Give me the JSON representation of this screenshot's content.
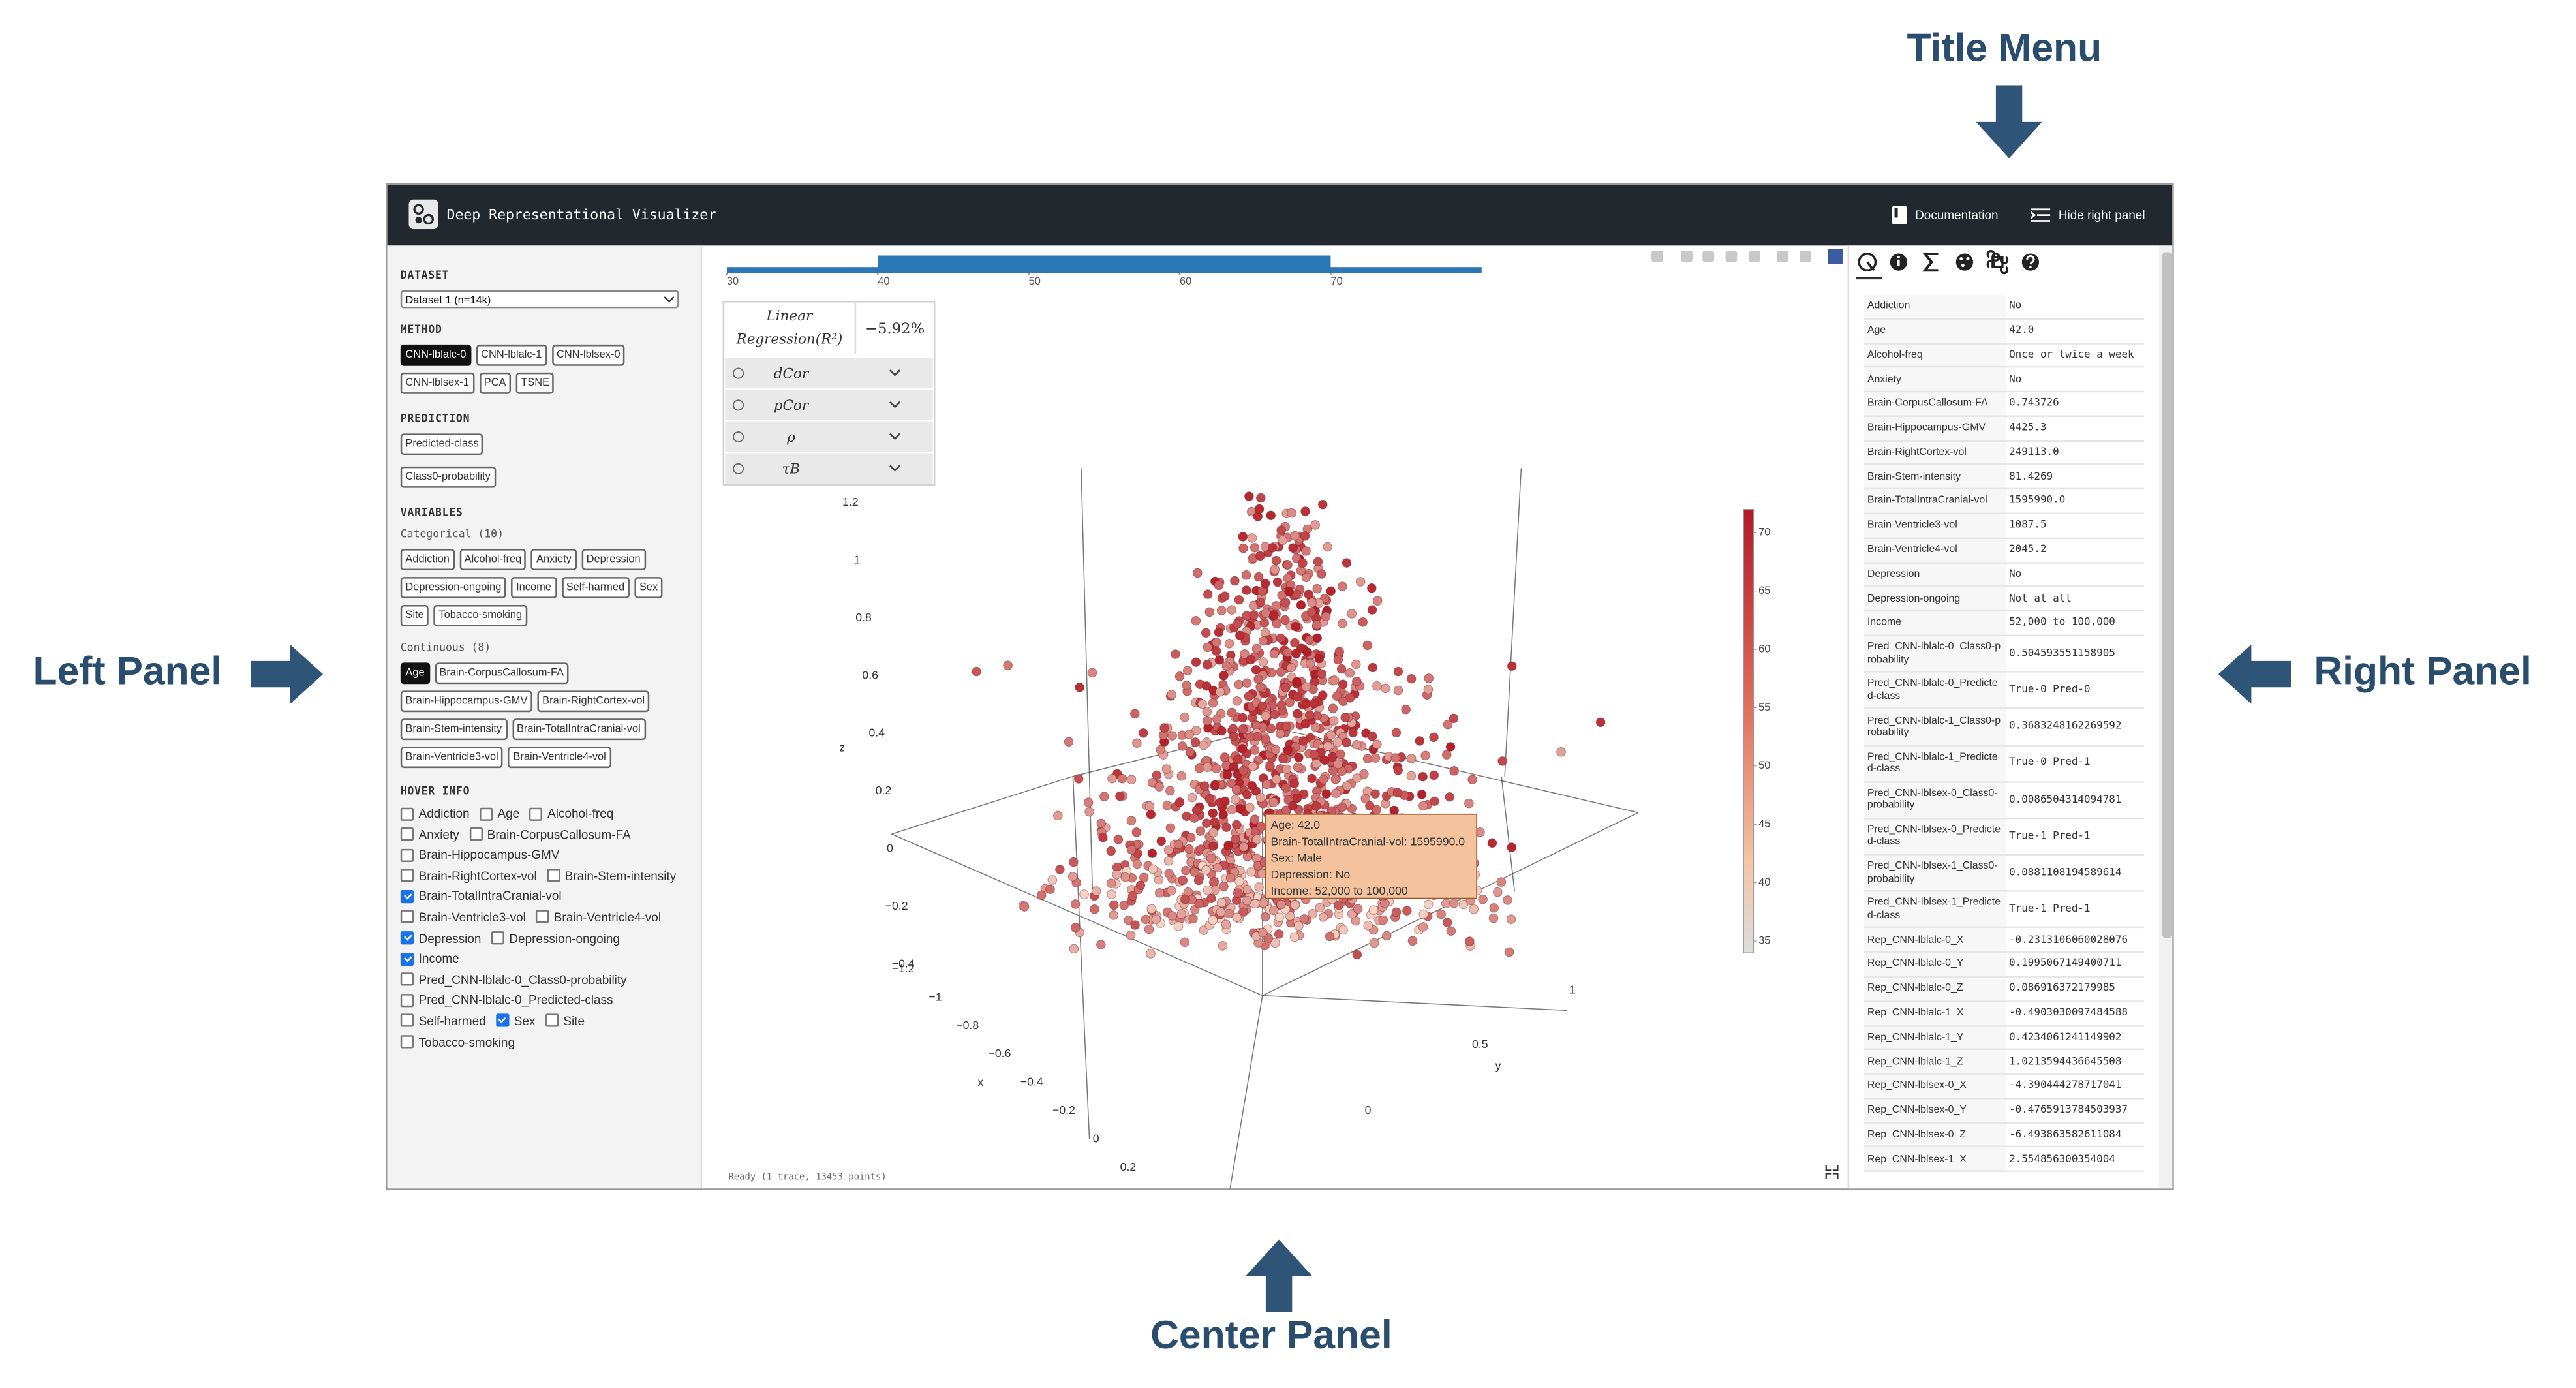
{
  "annotations": {
    "title_menu": "Title Menu",
    "left_panel": "Left Panel",
    "right_panel": "Right Panel",
    "center_panel": "Center Panel"
  },
  "header": {
    "title": "Deep Representational Visualizer",
    "documentation": "Documentation",
    "hide_right_panel": "Hide right panel"
  },
  "left_panel": {
    "dataset": {
      "label": "DATASET",
      "selected": "Dataset 1 (n=14k)"
    },
    "method": {
      "label": "METHOD",
      "options": [
        {
          "label": "CNN-lblalc-0",
          "active": true
        },
        {
          "label": "CNN-lblalc-1",
          "active": false
        },
        {
          "label": "CNN-lblsex-0",
          "active": false
        },
        {
          "label": "CNN-lblsex-1",
          "active": false
        },
        {
          "label": "PCA",
          "active": false
        },
        {
          "label": "TSNE",
          "active": false
        }
      ]
    },
    "prediction": {
      "label": "PREDICTION",
      "options": [
        {
          "label": "Predicted-class",
          "active": false
        },
        {
          "label": "Class0-probability",
          "active": false
        }
      ]
    },
    "variables": {
      "label": "VARIABLES",
      "categorical_label": "Categorical (10)",
      "categorical": [
        {
          "label": "Addiction",
          "active": false
        },
        {
          "label": "Alcohol-freq",
          "active": false
        },
        {
          "label": "Anxiety",
          "active": false
        },
        {
          "label": "Depression",
          "active": false
        },
        {
          "label": "Depression-ongoing",
          "active": false
        },
        {
          "label": "Income",
          "active": false
        },
        {
          "label": "Self-harmed",
          "active": false
        },
        {
          "label": "Sex",
          "active": false
        },
        {
          "label": "Site",
          "active": false
        },
        {
          "label": "Tobacco-smoking",
          "active": false
        }
      ],
      "continuous_label": "Continuous (8)",
      "continuous": [
        {
          "label": "Age",
          "active": true
        },
        {
          "label": "Brain-CorpusCallosum-FA",
          "active": false
        },
        {
          "label": "Brain-Hippocampus-GMV",
          "active": false
        },
        {
          "label": "Brain-RightCortex-vol",
          "active": false
        },
        {
          "label": "Brain-Stem-intensity",
          "active": false
        },
        {
          "label": "Brain-TotalIntraCranial-vol",
          "active": false
        },
        {
          "label": "Brain-Ventricle3-vol",
          "active": false
        },
        {
          "label": "Brain-Ventricle4-vol",
          "active": false
        }
      ]
    },
    "hover_info": {
      "label": "HOVER INFO",
      "items": [
        {
          "label": "Addiction",
          "checked": false
        },
        {
          "label": "Age",
          "checked": false
        },
        {
          "label": "Alcohol-freq",
          "checked": false
        },
        {
          "label": "Anxiety",
          "checked": false
        },
        {
          "label": "Brain-CorpusCallosum-FA",
          "checked": false
        },
        {
          "label": "Brain-Hippocampus-GMV",
          "checked": false
        },
        {
          "label": "Brain-RightCortex-vol",
          "checked": false
        },
        {
          "label": "Brain-Stem-intensity",
          "checked": false
        },
        {
          "label": "Brain-TotalIntraCranial-vol",
          "checked": true
        },
        {
          "label": "Brain-Ventricle3-vol",
          "checked": false
        },
        {
          "label": "Brain-Ventricle4-vol",
          "checked": false
        },
        {
          "label": "Depression",
          "checked": true
        },
        {
          "label": "Depression-ongoing",
          "checked": false
        },
        {
          "label": "Income",
          "checked": true
        },
        {
          "label": "Pred_CNN-lblalc-0_Class0-probability",
          "checked": false
        },
        {
          "label": "Pred_CNN-lblalc-0_Predicted-class",
          "checked": false
        },
        {
          "label": "Self-harmed",
          "checked": false
        },
        {
          "label": "Sex",
          "checked": true
        },
        {
          "label": "Site",
          "checked": false
        },
        {
          "label": "Tobacco-smoking",
          "checked": false
        }
      ]
    }
  },
  "center_panel": {
    "range_slider": {
      "lim": [
        30,
        80
      ],
      "selected": [
        40,
        70
      ],
      "ticks": [
        30,
        40,
        50,
        60,
        70
      ]
    },
    "stats": {
      "title": "Linear Regression(R²)",
      "value": "−5.92%",
      "rows": [
        "dCor",
        "pCor",
        "ρ",
        "τB"
      ]
    },
    "axes": {
      "z_label": "z",
      "z_ticks": [
        "1.2",
        "1",
        "0.8",
        "0.6",
        "0.4",
        "0.2",
        "0",
        "−0.2",
        "−0.4"
      ],
      "x_label": "x",
      "x_ticks": [
        "−1.2",
        "−1",
        "−0.8",
        "−0.6",
        "−0.4",
        "−0.2",
        "0",
        "0.2"
      ],
      "y_label": "y",
      "y_ticks": [
        "1",
        "0.5",
        "0"
      ]
    },
    "colorbar": {
      "lim": [
        34,
        72
      ],
      "ticks": [
        35,
        40,
        45,
        50,
        55,
        60,
        65,
        70
      ]
    },
    "tooltip": [
      "Age: 42.0",
      "Brain-TotalIntraCranial-vol: 1595990.0",
      "Sex: Male",
      "Depression: No",
      "Income: 52,000 to 100,000"
    ],
    "status": "Ready (1 trace, 13453 points)"
  },
  "right_panel": {
    "rows": [
      [
        "Addiction",
        "No"
      ],
      [
        "Age",
        "42.0"
      ],
      [
        "Alcohol-freq",
        "Once or twice a week"
      ],
      [
        "Anxiety",
        "No"
      ],
      [
        "Brain-CorpusCallosum-FA",
        "0.743726"
      ],
      [
        "Brain-Hippocampus-GMV",
        "4425.3"
      ],
      [
        "Brain-RightCortex-vol",
        "249113.0"
      ],
      [
        "Brain-Stem-intensity",
        "81.4269"
      ],
      [
        "Brain-TotalIntraCranial-vol",
        "1595990.0"
      ],
      [
        "Brain-Ventricle3-vol",
        "1087.5"
      ],
      [
        "Brain-Ventricle4-vol",
        "2045.2"
      ],
      [
        "Depression",
        "No"
      ],
      [
        "Depression-ongoing",
        "Not at all"
      ],
      [
        "Income",
        "52,000 to 100,000"
      ],
      [
        "Pred_CNN-lblalc-0_Class0-probability",
        "0.504593551158905"
      ],
      [
        "Pred_CNN-lblalc-0_Predicted-class",
        "True-0 Pred-0"
      ],
      [
        "Pred_CNN-lblalc-1_Class0-probability",
        "0.3683248162269592"
      ],
      [
        "Pred_CNN-lblalc-1_Predicted-class",
        "True-0 Pred-1"
      ],
      [
        "Pred_CNN-lblsex-0_Class0-probability",
        "0.0086504314094781"
      ],
      [
        "Pred_CNN-lblsex-0_Predicted-class",
        "True-1 Pred-1"
      ],
      [
        "Pred_CNN-lblsex-1_Class0-probability",
        "0.0881108194589614"
      ],
      [
        "Pred_CNN-lblsex-1_Predicted-class",
        "True-1 Pred-1"
      ],
      [
        "Rep_CNN-lblalc-0_X",
        "-0.2313106060028076"
      ],
      [
        "Rep_CNN-lblalc-0_Y",
        "0.1995067149400711"
      ],
      [
        "Rep_CNN-lblalc-0_Z",
        "0.086916372179985"
      ],
      [
        "Rep_CNN-lblalc-1_X",
        "-0.4903030097484588"
      ],
      [
        "Rep_CNN-lblalc-1_Y",
        "0.4234061241149902"
      ],
      [
        "Rep_CNN-lblalc-1_Z",
        "1.0213594436645508"
      ],
      [
        "Rep_CNN-lblsex-0_X",
        "-4.390444278717041"
      ],
      [
        "Rep_CNN-lblsex-0_Y",
        "-0.4765913784503937"
      ],
      [
        "Rep_CNN-lblsex-0_Z",
        "-6.493863582611084"
      ],
      [
        "Rep_CNN-lblsex-1_X",
        "2.554856300354004"
      ]
    ]
  }
}
